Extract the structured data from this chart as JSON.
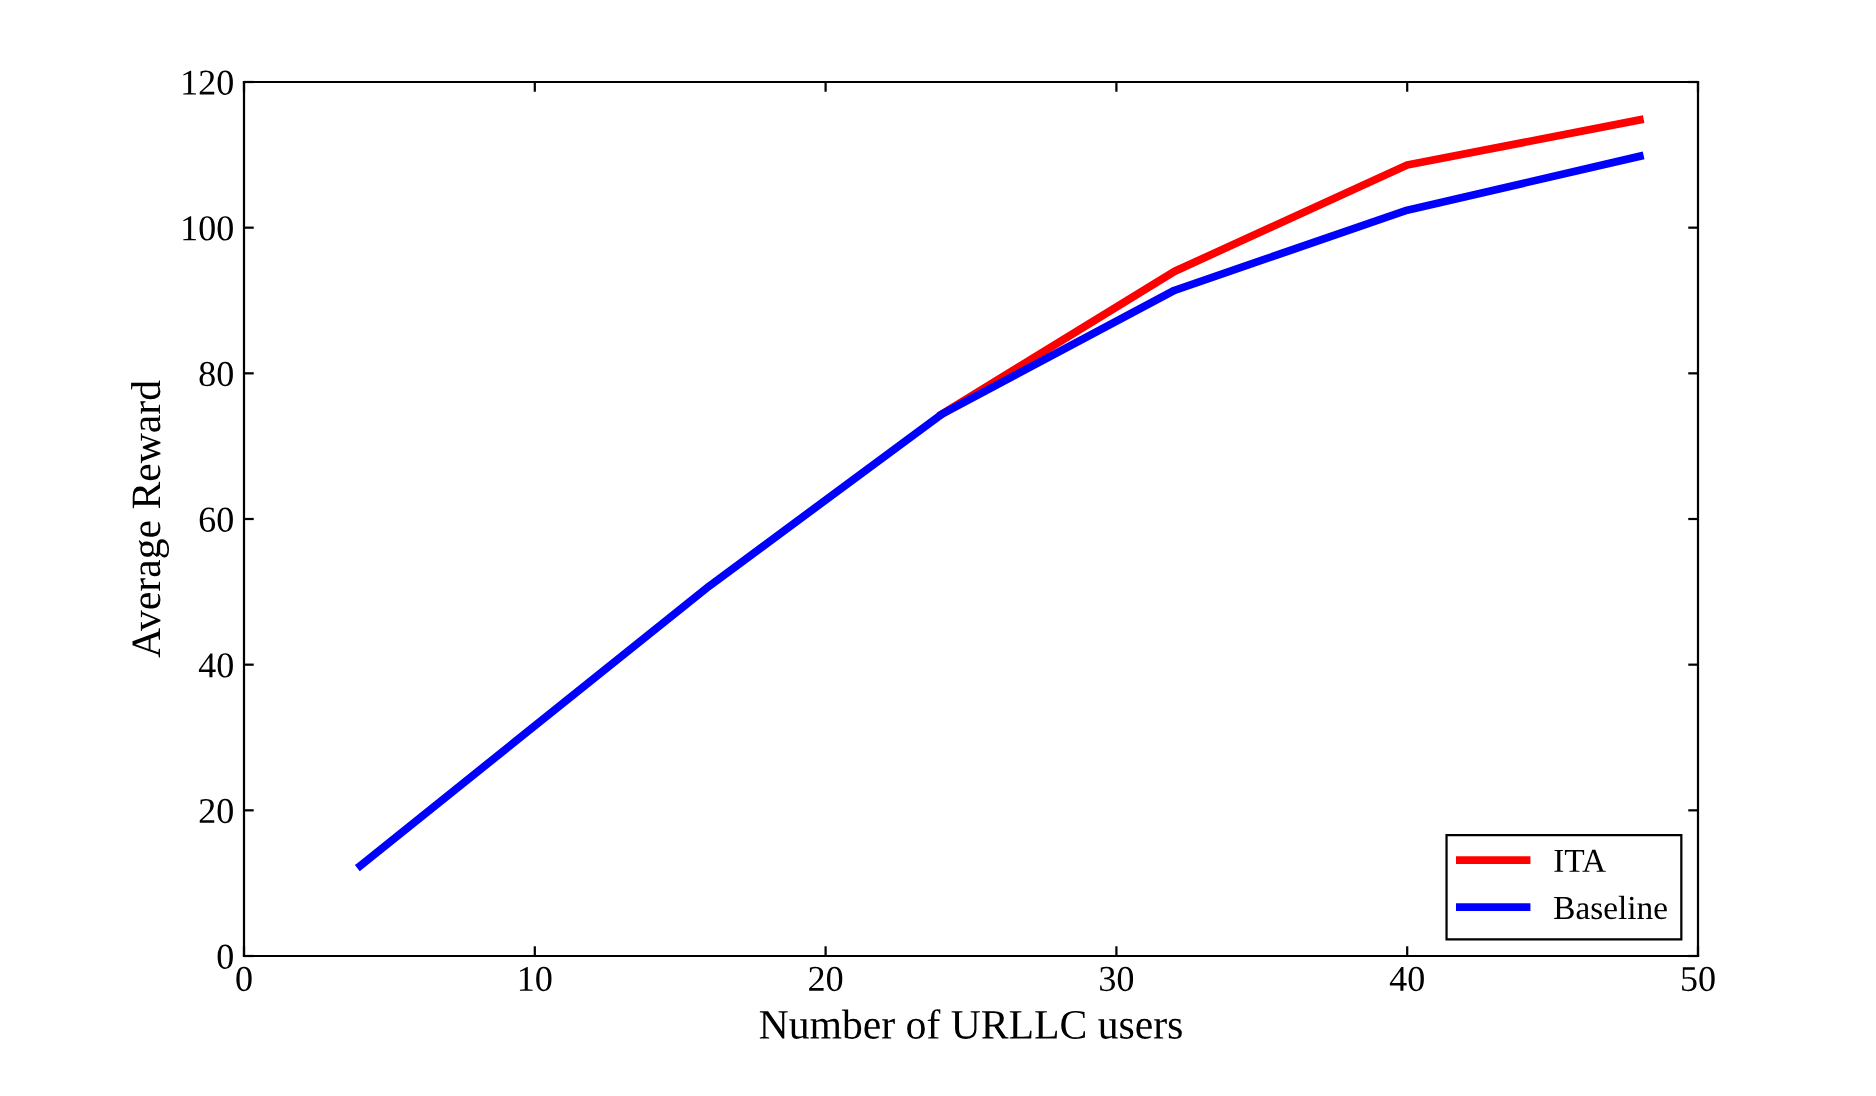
{
  "chart_data": {
    "type": "line",
    "xlabel": "Number of URLLC users",
    "ylabel": "Average Reward",
    "x": [
      4,
      16,
      24,
      32,
      40,
      48
    ],
    "series": [
      {
        "name": "ITA",
        "color": "#ff0000",
        "values": [
          null,
          null,
          74.4,
          94.0,
          108.6,
          114.8
        ]
      },
      {
        "name": "Baseline",
        "color": "#0000ff",
        "values": [
          12.4,
          50.8,
          74.4,
          91.4,
          102.4,
          109.8
        ]
      }
    ],
    "xlim": [
      0,
      50
    ],
    "ylim": [
      0,
      120
    ],
    "xticks": [
      0,
      10,
      20,
      30,
      40,
      50
    ],
    "yticks": [
      0,
      20,
      40,
      60,
      80,
      100,
      120
    ],
    "grid": false,
    "legend": "bottom right",
    "marker": "none",
    "line_style": "solid"
  }
}
